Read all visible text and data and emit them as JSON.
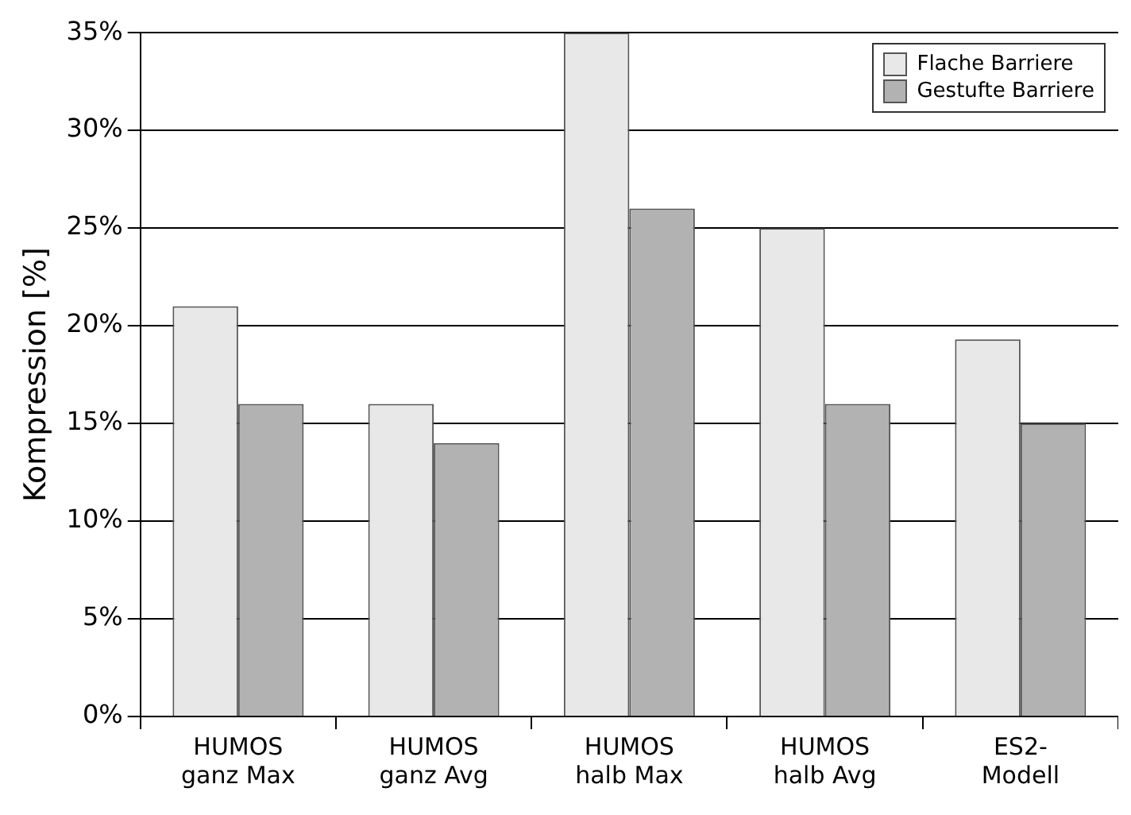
{
  "chart_data": {
    "type": "bar",
    "ylabel": "Kompression [%]",
    "categories": [
      "HUMOS\nganz Max",
      "HUMOS\nganz Avg",
      "HUMOS\nhalb Max",
      "HUMOS\nhalb Avg",
      "ES2-\nModell"
    ],
    "series": [
      {
        "name": "Flache Barriere",
        "color": "#e8e8e8",
        "values": [
          21,
          16,
          35,
          25,
          19.3
        ]
      },
      {
        "name": "Gestufte Barriere",
        "color": "#b2b2b2",
        "values": [
          16,
          14,
          26,
          16,
          15
        ]
      }
    ],
    "ylim": [
      0,
      35
    ],
    "yticks": [
      {
        "value": 0,
        "label": "0%"
      },
      {
        "value": 5,
        "label": "5%"
      },
      {
        "value": 10,
        "label": "10%"
      },
      {
        "value": 15,
        "label": "15%"
      },
      {
        "value": 20,
        "label": "20%"
      },
      {
        "value": 25,
        "label": "25%"
      },
      {
        "value": 30,
        "label": "30%"
      },
      {
        "value": 35,
        "label": "35%"
      }
    ],
    "grid": "y",
    "legend": "top right"
  }
}
